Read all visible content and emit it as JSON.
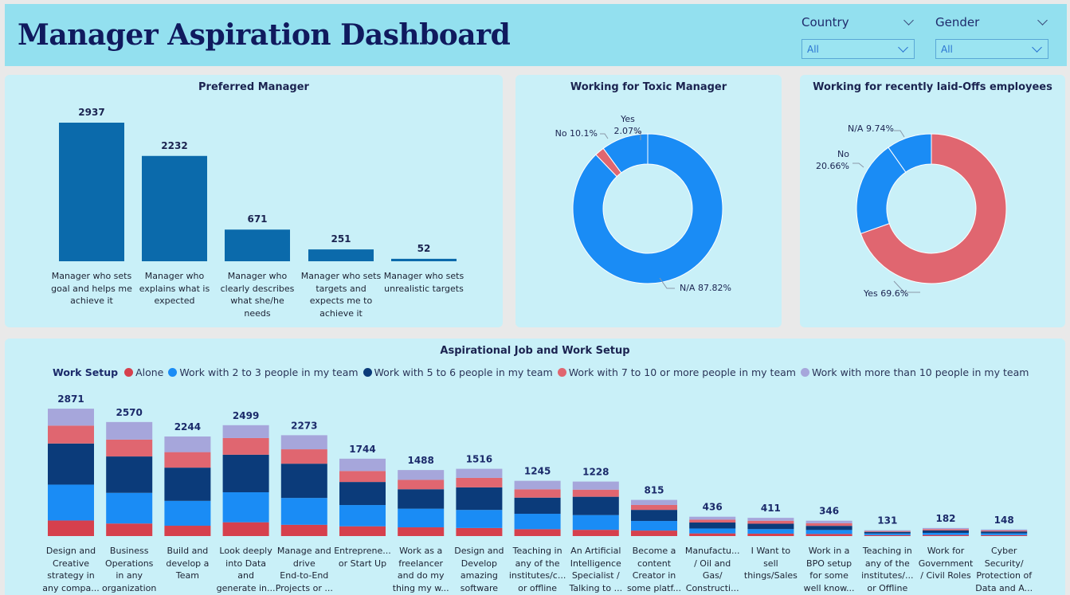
{
  "header": {
    "title": "Manager Aspiration Dashboard"
  },
  "filters": {
    "country": {
      "label": "Country",
      "value": "All"
    },
    "gender": {
      "label": "Gender",
      "value": "All"
    }
  },
  "colors": {
    "bar": "#0b6aab",
    "blue": "#1a8cf5",
    "red": "#e06670",
    "alone": "#d6404d",
    "navy": "#0b3b7a",
    "lavender": "#a6a6db",
    "panel": "#c9f0f8"
  },
  "chart_data": [
    {
      "type": "bar",
      "title": "Preferred Manager",
      "categories": [
        "Manager who sets goal and helps me achieve it",
        "Manager who explains what is expected",
        "Manager who clearly describes what she/he needs",
        "Manager who sets targets and expects me to achieve it",
        "Manager who sets unrealistic targets"
      ],
      "category_lines": [
        [
          "Manager who sets",
          "goal and helps me",
          "achieve it"
        ],
        [
          "Manager who",
          "explains what is",
          "expected"
        ],
        [
          "Manager who",
          "clearly describes",
          "what she/he",
          "needs"
        ],
        [
          "Manager who sets",
          "targets and",
          "expects me to",
          "achieve it"
        ],
        [
          "Manager who sets",
          "unrealistic targets"
        ]
      ],
      "values": [
        2937,
        2232,
        671,
        251,
        52
      ]
    },
    {
      "type": "pie",
      "title": "Working for Toxic Manager",
      "slices": [
        {
          "label": "N/A",
          "value": 87.82,
          "text": "N/A 87.82%",
          "color": "#1a8cf5"
        },
        {
          "label": "Yes",
          "value": 2.07,
          "text": "Yes 2.07%",
          "color": "#e06670"
        },
        {
          "label": "No",
          "value": 10.1,
          "text": "No 10.1%",
          "color": "#1a8cf5"
        }
      ]
    },
    {
      "type": "pie",
      "title": "Working for recently laid-Offs employees",
      "slices": [
        {
          "label": "Yes",
          "value": 69.6,
          "text": "Yes 69.6%",
          "color": "#e06670"
        },
        {
          "label": "No",
          "value": 20.66,
          "text": "No 20.66%",
          "color": "#1a8cf5"
        },
        {
          "label": "N/A",
          "value": 9.74,
          "text": "N/A 9.74%",
          "color": "#1a8cf5"
        }
      ]
    },
    {
      "type": "bar",
      "stacked": true,
      "title": "Aspirational Job and Work Setup",
      "legend_title": "Work Setup",
      "series": [
        {
          "name": "Alone",
          "color": "#d6404d",
          "values": [
            351,
            283,
            233,
            311,
            254,
            220,
            197,
            182,
            155,
            141,
            124,
            60,
            55,
            48,
            22,
            25,
            22
          ]
        },
        {
          "name": "Work with 2 to 3 people in my team",
          "color": "#1a8cf5",
          "values": [
            808,
            691,
            560,
            676,
            605,
            479,
            420,
            407,
            347,
            332,
            216,
            111,
            102,
            89,
            36,
            47,
            39
          ]
        },
        {
          "name": "Work with 5 to 6 people in my team",
          "color": "#0b3b7a",
          "values": [
            927,
            820,
            749,
            846,
            772,
            520,
            438,
            508,
            364,
            413,
            250,
            134,
            121,
            93,
            36,
            54,
            42
          ]
        },
        {
          "name": "Work with 7 to 10 or more people in my team",
          "color": "#e06670",
          "values": [
            404,
            381,
            350,
            377,
            325,
            248,
            212,
            215,
            188,
            160,
            111,
            65,
            67,
            59,
            19,
            29,
            23
          ]
        },
        {
          "name": "Work with more than 10 people in my team",
          "color": "#a6a6db",
          "values": [
            381,
            395,
            352,
            289,
            317,
            277,
            221,
            204,
            191,
            182,
            114,
            66,
            66,
            57,
            18,
            27,
            22
          ]
        }
      ],
      "totals": [
        2871,
        2570,
        2244,
        2499,
        2273,
        1744,
        1488,
        1516,
        1245,
        1228,
        815,
        436,
        411,
        346,
        131,
        182,
        148
      ],
      "category_lines": [
        [
          "Design and",
          "Creative",
          "strategy in",
          "any compa..."
        ],
        [
          "Business",
          "Operations",
          "in any",
          "organization"
        ],
        [
          "Build and",
          "develop a",
          "Team"
        ],
        [
          "Look deeply",
          "into Data",
          "and",
          "generate in..."
        ],
        [
          "Manage and",
          "drive",
          "End-to-End",
          "Projects or ..."
        ],
        [
          "Entreprene...",
          "or Start Up"
        ],
        [
          "Work as a",
          "freelancer",
          "and do my",
          "thing my w..."
        ],
        [
          "Design and",
          "Develop",
          "amazing",
          "software"
        ],
        [
          "Teaching in",
          "any of the",
          "institutes/c...",
          "or offline"
        ],
        [
          "An Artificial",
          "Intelligence",
          "Specialist /",
          "Talking to ..."
        ],
        [
          "Become a",
          "content",
          "Creator in",
          "some platf..."
        ],
        [
          "Manufactu...",
          "/ Oil and",
          "Gas/",
          "Constructi..."
        ],
        [
          "I Want to",
          "sell",
          "things/Sales"
        ],
        [
          "Work in a",
          "BPO setup",
          "for some",
          "well know..."
        ],
        [
          "Teaching in",
          "any of the",
          "institutes/...",
          "or Offline"
        ],
        [
          "Work for",
          "Government",
          "/ Civil Roles"
        ],
        [
          "Cyber",
          "Security/",
          "Protection of",
          "Data and A..."
        ]
      ]
    }
  ]
}
